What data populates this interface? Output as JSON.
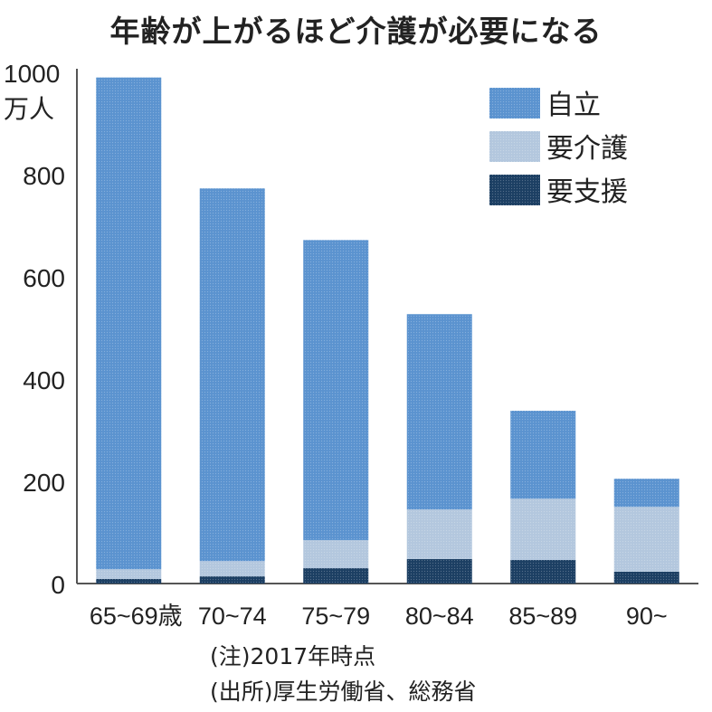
{
  "chart_data": {
    "type": "bar",
    "stacked": true,
    "title": "年齢が上がるほど介護が必要になる",
    "ylabel": "万人",
    "ylim": [
      0,
      1000
    ],
    "yticks": [
      0,
      200,
      400,
      600,
      800,
      1000
    ],
    "grid": false,
    "legend_position": "top-right",
    "categories": [
      "65~69歳",
      "70~74",
      "75~79",
      "80~84",
      "85~89",
      "90~"
    ],
    "series": [
      {
        "name": "要支援",
        "color": "#1c3f63",
        "values": [
          9,
          14,
          30,
          48,
          46,
          23
        ]
      },
      {
        "name": "要介護",
        "color": "#b3c7de",
        "values": [
          19,
          30,
          55,
          97,
          120,
          127
        ]
      },
      {
        "name": "自立",
        "color": "#5b93cf",
        "values": [
          962,
          729,
          587,
          382,
          172,
          55
        ]
      }
    ],
    "legend_order": [
      "自立",
      "要介護",
      "要支援"
    ]
  },
  "notes": {
    "note": "(注)2017年時点",
    "source": "(出所)厚生労働省、総務省"
  }
}
